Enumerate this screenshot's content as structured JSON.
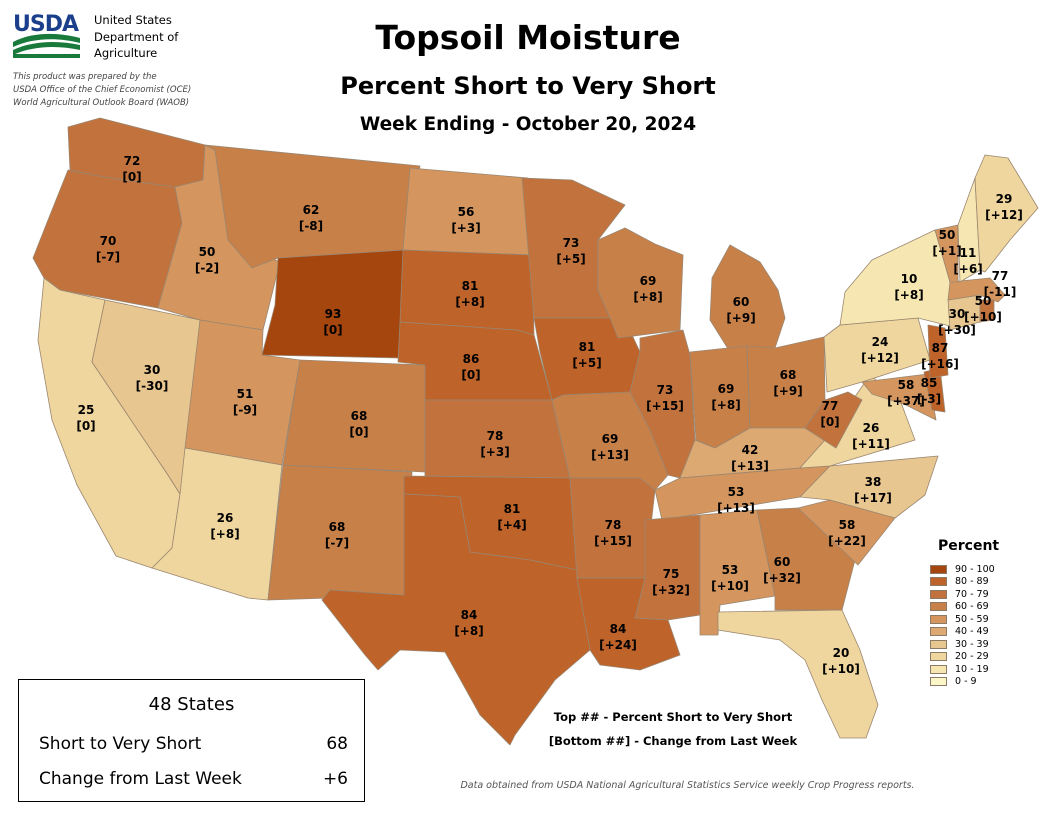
{
  "header": {
    "agency_lines": [
      "United States",
      "Department of",
      "Agriculture"
    ],
    "prepared_lines": [
      "This product was prepared by the",
      "USDA Office of the Chief Economist (OCE)",
      "World Agricultural Outlook Board (WAOB)"
    ],
    "title": "Topsoil Moisture",
    "subtitle": "Percent Short to Very Short",
    "date_line": "Week Ending - October 20, 2024"
  },
  "logo": {
    "text": "USDA",
    "colors": {
      "text": "#1c3f8c",
      "green": "#1a7a3c"
    }
  },
  "legend": {
    "title": "Percent",
    "items": [
      {
        "label": "90 - 100",
        "color": "#a5460f"
      },
      {
        "label": "80 - 89",
        "color": "#be6329"
      },
      {
        "label": "70 - 79",
        "color": "#c2733d"
      },
      {
        "label": "60 - 69",
        "color": "#c88049"
      },
      {
        "label": "50 - 59",
        "color": "#d4965e"
      },
      {
        "label": "40 - 49",
        "color": "#dda972"
      },
      {
        "label": "30 - 39",
        "color": "#e7c690"
      },
      {
        "label": "20 - 29",
        "color": "#efd69e"
      },
      {
        "label": "10 - 19",
        "color": "#f6e7b2"
      },
      {
        "label": "0 - 9",
        "color": "#fcf7c8"
      }
    ]
  },
  "summary": {
    "title": "48 States",
    "rows": [
      {
        "label": "Short to Very Short",
        "value": "68"
      },
      {
        "label": "Change from Last Week",
        "value": "+6"
      }
    ]
  },
  "notes": [
    "Top ## - Percent Short to Very Short",
    "[Bottom ##] - Change from Last Week"
  ],
  "footer": "Data obtained from USDA National Agricultural Statistics Service weekly Crop Progress reports.",
  "states": [
    {
      "name": "Washington",
      "value": 72,
      "change": "[0]"
    },
    {
      "name": "Oregon",
      "value": 70,
      "change": "[-7]"
    },
    {
      "name": "California",
      "value": 25,
      "change": "[0]"
    },
    {
      "name": "Nevada",
      "value": 30,
      "change": "[-30]"
    },
    {
      "name": "Idaho",
      "value": 50,
      "change": "[-2]"
    },
    {
      "name": "Montana",
      "value": 62,
      "change": "[-8]"
    },
    {
      "name": "Wyoming",
      "value": 93,
      "change": "[0]"
    },
    {
      "name": "Utah",
      "value": 51,
      "change": "[-9]"
    },
    {
      "name": "Arizona",
      "value": 26,
      "change": "[+8]"
    },
    {
      "name": "Colorado",
      "value": 68,
      "change": "[0]"
    },
    {
      "name": "New Mexico",
      "value": 68,
      "change": "[-7]"
    },
    {
      "name": "North Dakota",
      "value": 56,
      "change": "[+3]"
    },
    {
      "name": "South Dakota",
      "value": 81,
      "change": "[+8]"
    },
    {
      "name": "Nebraska",
      "value": 86,
      "change": "[0]"
    },
    {
      "name": "Kansas",
      "value": 78,
      "change": "[+3]"
    },
    {
      "name": "Oklahoma",
      "value": 81,
      "change": "[+4]"
    },
    {
      "name": "Texas",
      "value": 84,
      "change": "[+8]"
    },
    {
      "name": "Minnesota",
      "value": 73,
      "change": "[+5]"
    },
    {
      "name": "Iowa",
      "value": 81,
      "change": "[+5]"
    },
    {
      "name": "Missouri",
      "value": 69,
      "change": "[+13]"
    },
    {
      "name": "Arkansas",
      "value": 78,
      "change": "[+15]"
    },
    {
      "name": "Louisiana",
      "value": 84,
      "change": "[+24]"
    },
    {
      "name": "Wisconsin",
      "value": 69,
      "change": "[+8]"
    },
    {
      "name": "Illinois",
      "value": 73,
      "change": "[+15]"
    },
    {
      "name": "Michigan",
      "value": 60,
      "change": "[+9]"
    },
    {
      "name": "Indiana",
      "value": 69,
      "change": "[+8]"
    },
    {
      "name": "Ohio",
      "value": 68,
      "change": "[+9]"
    },
    {
      "name": "Kentucky",
      "value": 42,
      "change": "[+13]"
    },
    {
      "name": "Tennessee",
      "value": 53,
      "change": "[+13]"
    },
    {
      "name": "Mississippi",
      "value": 75,
      "change": "[+32]"
    },
    {
      "name": "Alabama",
      "value": 53,
      "change": "[+10]"
    },
    {
      "name": "Georgia",
      "value": 60,
      "change": "[+32]"
    },
    {
      "name": "Florida",
      "value": 20,
      "change": "[+10]"
    },
    {
      "name": "South Carolina",
      "value": 58,
      "change": "[+22]"
    },
    {
      "name": "North Carolina",
      "value": 38,
      "change": "[+17]"
    },
    {
      "name": "Virginia",
      "value": 26,
      "change": "[+11]"
    },
    {
      "name": "West Virginia",
      "value": 77,
      "change": "[0]"
    },
    {
      "name": "Maryland",
      "value": 58,
      "change": "[+37]"
    },
    {
      "name": "Delaware",
      "value": 85,
      "change": "[-3]"
    },
    {
      "name": "Pennsylvania",
      "value": 24,
      "change": "[+12]"
    },
    {
      "name": "New Jersey",
      "value": 87,
      "change": "[+16]"
    },
    {
      "name": "New York",
      "value": 10,
      "change": "[+8]"
    },
    {
      "name": "Connecticut",
      "value": 30,
      "change": "[+30]"
    },
    {
      "name": "Massachusetts",
      "value": 50,
      "change": "[+10]"
    },
    {
      "name": "Rhode Island",
      "value": 77,
      "change": "[-11]"
    },
    {
      "name": "Vermont",
      "value": 50,
      "change": "[+1]"
    },
    {
      "name": "New Hampshire",
      "value": 11,
      "change": "[+6]"
    },
    {
      "name": "Maine",
      "value": 29,
      "change": "[+12]"
    }
  ]
}
